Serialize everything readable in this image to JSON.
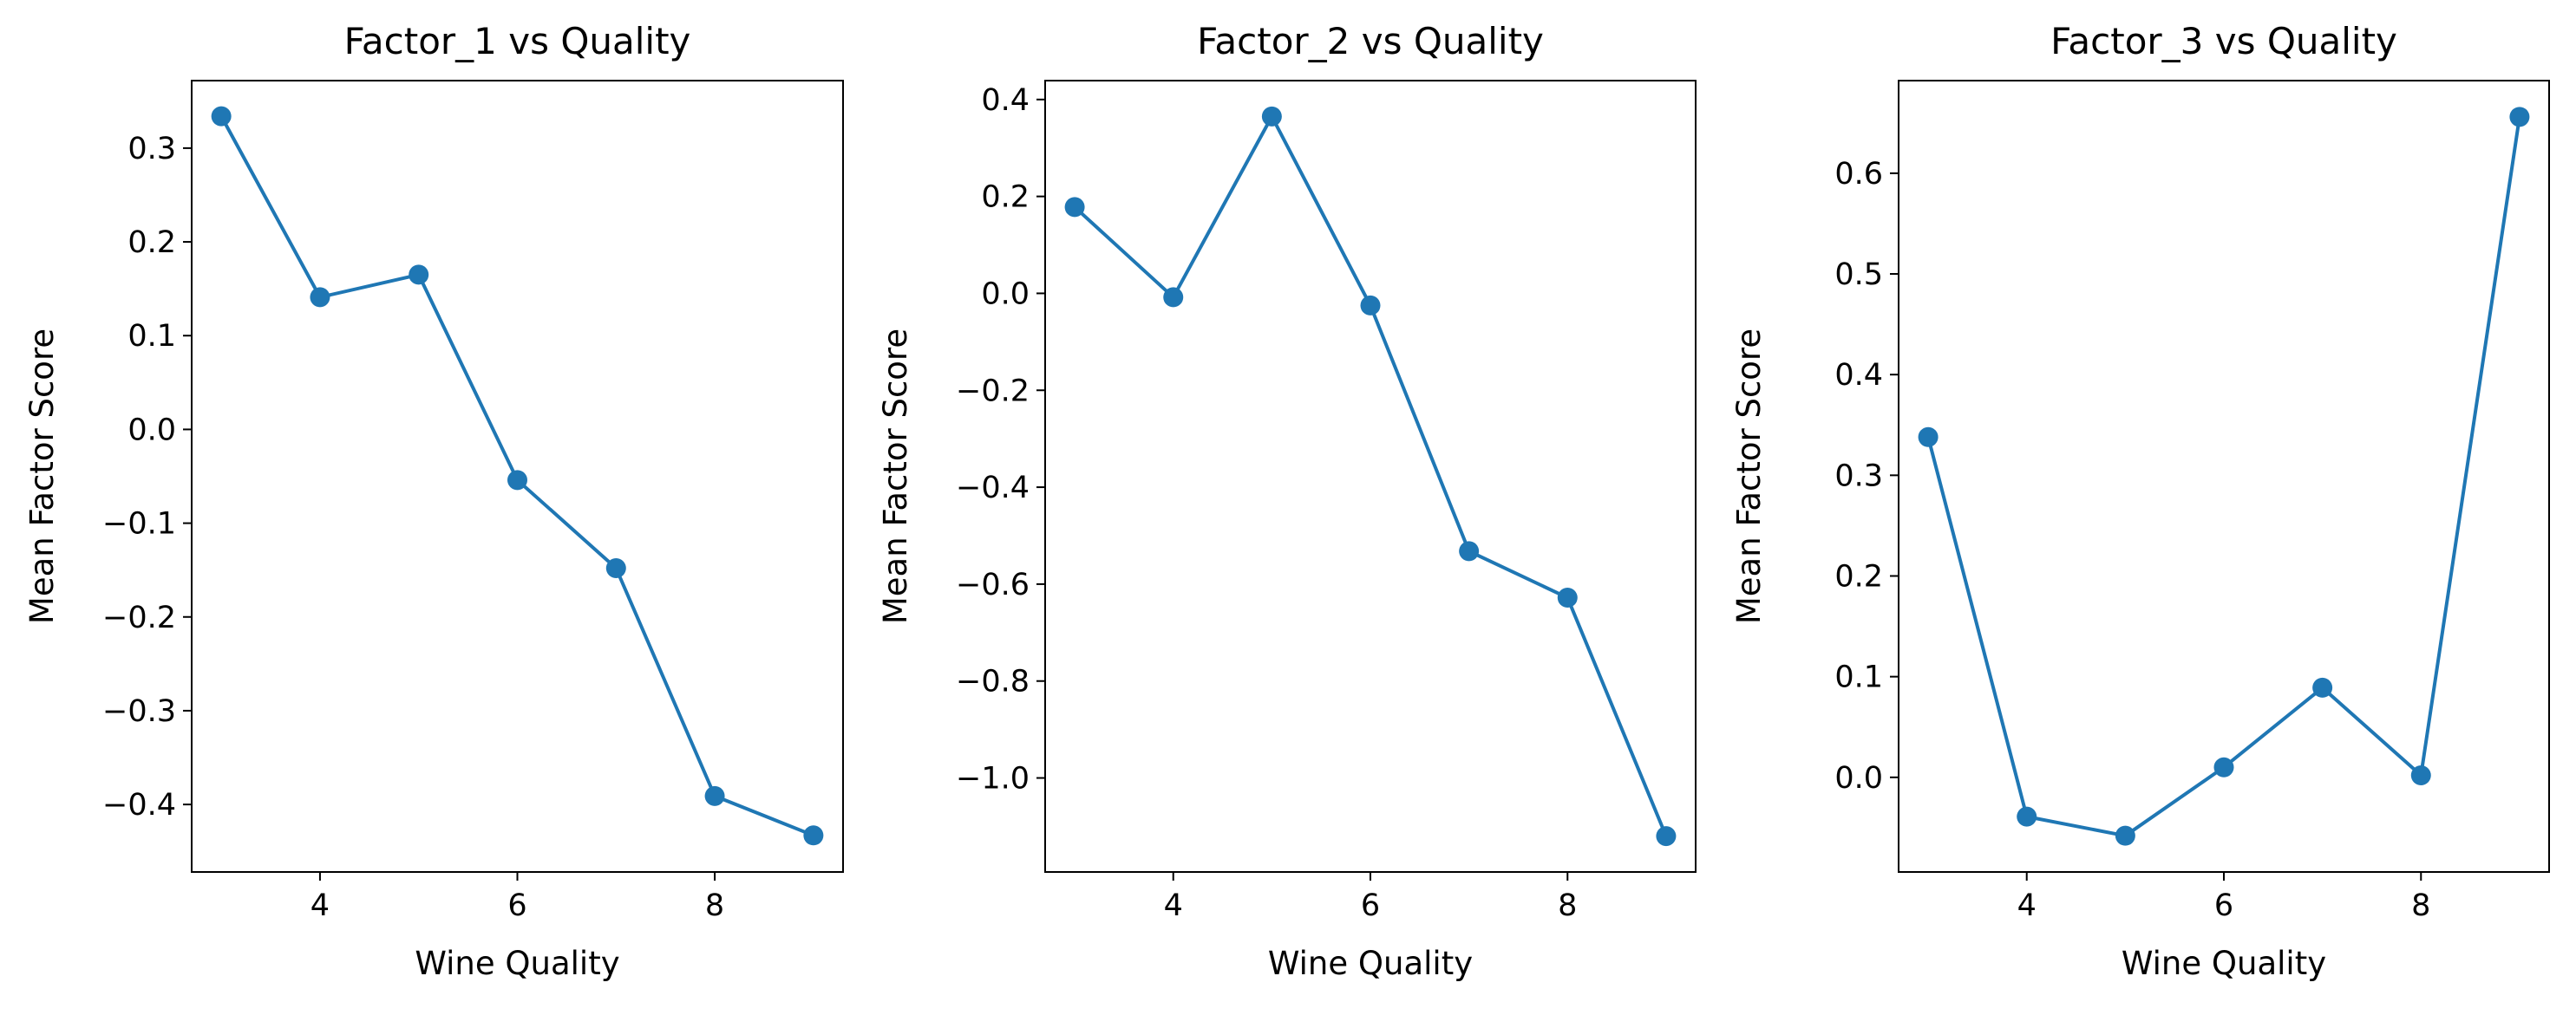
{
  "chart_data": [
    {
      "type": "line",
      "title": "Factor_1 vs Quality",
      "xlabel": "Wine Quality",
      "ylabel": "Mean Factor Score",
      "x": [
        3,
        4,
        5,
        6,
        7,
        8,
        9
      ],
      "series": [
        {
          "values": [
            0.334,
            0.141,
            0.165,
            -0.054,
            -0.148,
            -0.391,
            -0.433
          ],
          "color": "#1f77b4"
        }
      ],
      "xlim": [
        2.7,
        9.3
      ],
      "ylim": [
        -0.472,
        0.372
      ],
      "xticks": [
        4,
        6,
        8
      ],
      "xtick_labels": [
        "4",
        "6",
        "8"
      ],
      "yticks": [
        0.3,
        0.2,
        0.1,
        0.0,
        -0.1,
        -0.2,
        -0.3,
        -0.4
      ],
      "ytick_labels": [
        "0.3",
        "0.2",
        "0.1",
        "0.0",
        "−0.1",
        "−0.2",
        "−0.3",
        "−0.4"
      ],
      "grid": false,
      "marker": "circle"
    },
    {
      "type": "line",
      "title": "Factor_2 vs Quality",
      "xlabel": "Wine Quality",
      "ylabel": "Mean Factor Score",
      "x": [
        3,
        4,
        5,
        6,
        7,
        8,
        9
      ],
      "series": [
        {
          "values": [
            0.178,
            -0.008,
            0.365,
            -0.025,
            -0.532,
            -0.628,
            -1.12
          ],
          "color": "#1f77b4"
        }
      ],
      "xlim": [
        2.7,
        9.3
      ],
      "ylim": [
        -1.194,
        0.439
      ],
      "xticks": [
        4,
        6,
        8
      ],
      "xtick_labels": [
        "4",
        "6",
        "8"
      ],
      "yticks": [
        0.4,
        0.2,
        0.0,
        -0.2,
        -0.4,
        -0.6,
        -0.8,
        -1.0
      ],
      "ytick_labels": [
        "0.4",
        "0.2",
        "0.0",
        "−0.2",
        "−0.4",
        "−0.6",
        "−0.8",
        "−1.0"
      ],
      "grid": false,
      "marker": "circle"
    },
    {
      "type": "line",
      "title": "Factor_3 vs Quality",
      "xlabel": "Wine Quality",
      "ylabel": "Mean Factor Score",
      "x": [
        3,
        4,
        5,
        6,
        7,
        8,
        9
      ],
      "series": [
        {
          "values": [
            0.338,
            -0.039,
            -0.058,
            0.01,
            0.089,
            0.002,
            0.656
          ],
          "color": "#1f77b4"
        }
      ],
      "xlim": [
        2.7,
        9.3
      ],
      "ylim": [
        -0.094,
        0.692
      ],
      "xticks": [
        4,
        6,
        8
      ],
      "xtick_labels": [
        "4",
        "6",
        "8"
      ],
      "yticks": [
        0.6,
        0.5,
        0.4,
        0.3,
        0.2,
        0.1,
        0.0
      ],
      "ytick_labels": [
        "0.6",
        "0.5",
        "0.4",
        "0.3",
        "0.2",
        "0.1",
        "0.0"
      ],
      "grid": false,
      "marker": "circle"
    }
  ]
}
